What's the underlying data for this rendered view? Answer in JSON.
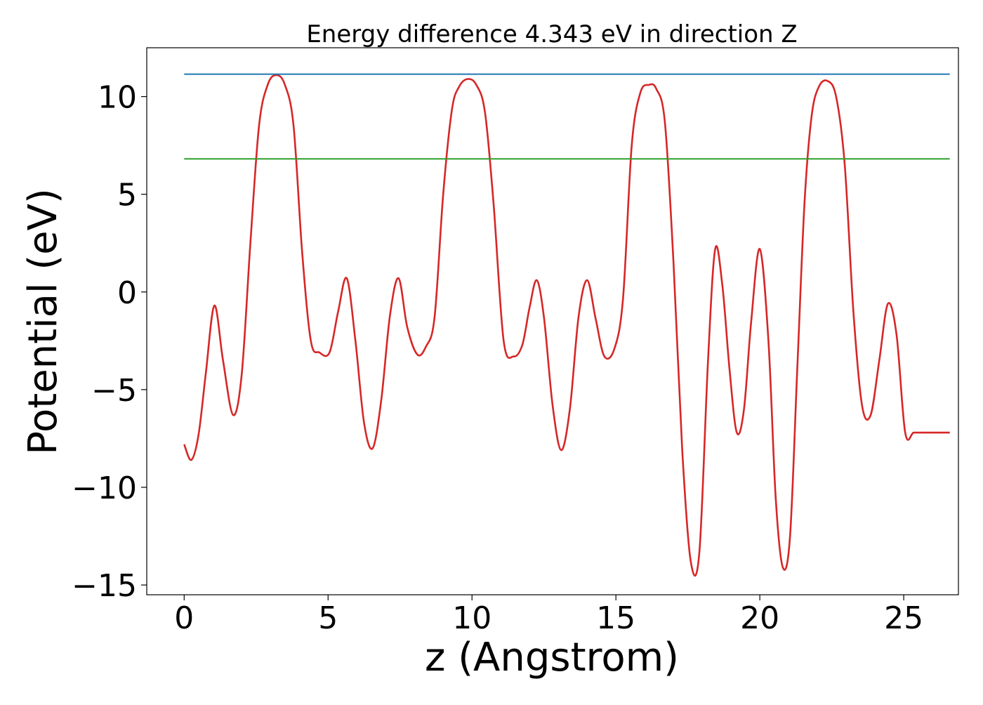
{
  "chart_data": {
    "type": "line",
    "title": "Energy difference 4.343 eV in direction Z",
    "xlabel": "z (Angstrom)",
    "ylabel": "Potential (eV)",
    "xlim": [
      -1.3,
      26.9
    ],
    "ylim": [
      -15.5,
      12.5
    ],
    "xticks": [
      0,
      5,
      10,
      15,
      20,
      25
    ],
    "xtick_labels": [
      "0",
      "5",
      "10",
      "15",
      "20",
      "25"
    ],
    "yticks": [
      -15,
      -10,
      -5,
      0,
      5,
      10
    ],
    "ytick_labels": [
      "−15",
      "−10",
      "−5",
      "0",
      "5",
      "10"
    ],
    "grid": false,
    "series": [
      {
        "color": "#d62728",
        "x": [
          0,
          0.25,
          0.5,
          0.75,
          1.05,
          1.35,
          1.7,
          2.0,
          2.3,
          2.6,
          2.9,
          3.2,
          3.5,
          3.8,
          4.1,
          4.4,
          4.7,
          5.05,
          5.35,
          5.65,
          5.95,
          6.25,
          6.55,
          6.85,
          7.15,
          7.45,
          7.75,
          8.1,
          8.4,
          8.7,
          9.0,
          9.3,
          9.55,
          9.85,
          10.15,
          10.45,
          10.75,
          11.1,
          11.45,
          11.75,
          12.0,
          12.25,
          12.5,
          12.8,
          13.1,
          13.4,
          13.7,
          14.0,
          14.3,
          14.6,
          14.95,
          15.25,
          15.55,
          15.85,
          16.15,
          16.4,
          16.7,
          17.0,
          17.3,
          17.6,
          17.9,
          18.2,
          18.45,
          18.7,
          18.95,
          19.2,
          19.45,
          19.7,
          20.0,
          20.3,
          20.55,
          20.8,
          21.05,
          21.3,
          21.55,
          21.8,
          22.05,
          22.35,
          22.65,
          22.95,
          23.25,
          23.55,
          23.85,
          24.15,
          24.45,
          24.75,
          25.05,
          25.35,
          25.7,
          26.0,
          26.3,
          26.6
        ],
        "y": [
          -7.8,
          -8.6,
          -7.3,
          -4.2,
          -0.7,
          -3.5,
          -6.3,
          -4.2,
          2.5,
          8.5,
          10.6,
          11.1,
          10.6,
          8.5,
          2.0,
          -2.5,
          -3.1,
          -3.1,
          -1.0,
          0.7,
          -2.5,
          -6.7,
          -8.0,
          -5.5,
          -1.2,
          0.7,
          -1.8,
          -3.2,
          -2.8,
          -1.3,
          5.0,
          9.3,
          10.5,
          10.9,
          10.6,
          9.2,
          4.5,
          -2.5,
          -3.3,
          -2.7,
          -0.8,
          0.6,
          -1.3,
          -5.8,
          -8.1,
          -6.0,
          -1.3,
          0.6,
          -1.4,
          -3.3,
          -2.9,
          -0.3,
          7.5,
          10.2,
          10.6,
          10.4,
          8.7,
          1.5,
          -8.0,
          -13.8,
          -13.3,
          -3.5,
          2.2,
          0.3,
          -4.0,
          -7.2,
          -6.0,
          -1.5,
          2.2,
          -2.5,
          -10.5,
          -14.1,
          -12.5,
          -4.0,
          4.5,
          9.0,
          10.5,
          10.8,
          10.0,
          6.5,
          -1.0,
          -5.8,
          -6.3,
          -3.5,
          -0.6,
          -2.2,
          -7.2,
          -7.2,
          -7.2,
          -7.2,
          -7.2,
          -7.2
        ]
      },
      {
        "color": "#1f77b4",
        "x": [
          0,
          26.6
        ],
        "y": [
          11.15,
          11.15
        ]
      },
      {
        "color": "#2ca02c",
        "x": [
          0,
          26.6
        ],
        "y": [
          6.81,
          6.81
        ]
      }
    ]
  }
}
